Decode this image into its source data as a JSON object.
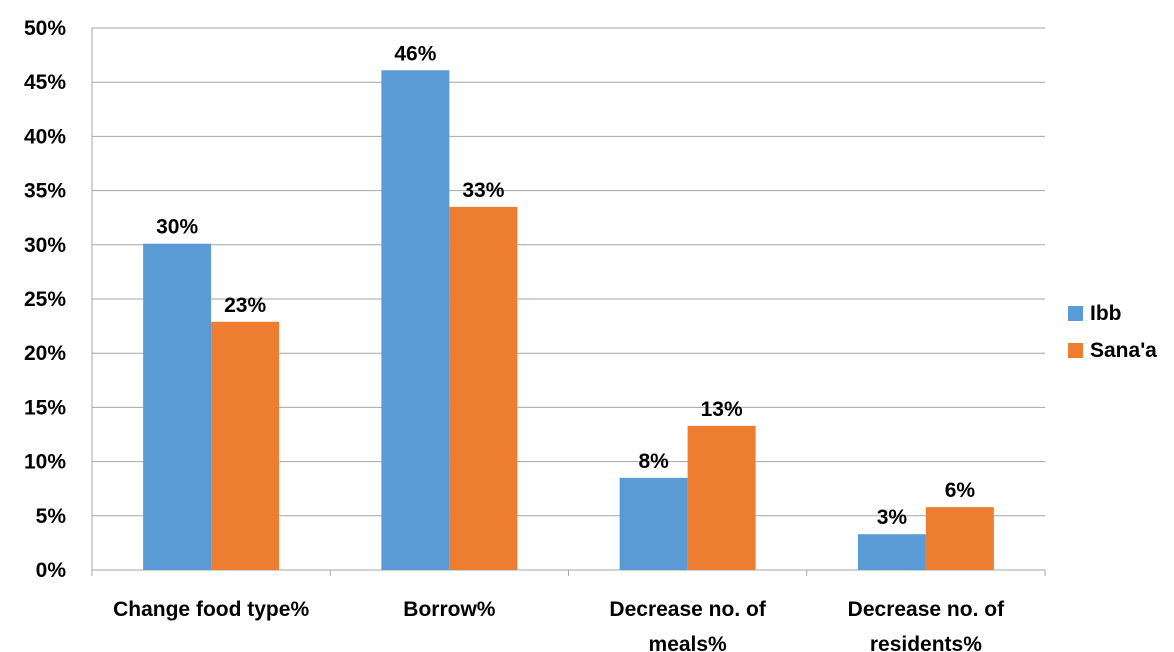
{
  "chart_data": {
    "type": "bar",
    "title": "",
    "xlabel": "",
    "ylabel": "",
    "categories": [
      [
        "Change food type%"
      ],
      [
        "Borrow%"
      ],
      [
        "Decrease no. of",
        "meals%"
      ],
      [
        "Decrease no. of",
        "residents%"
      ]
    ],
    "series": [
      {
        "name": "Ibb",
        "color": "#5b9bd5",
        "values": [
          30.1,
          46.1,
          8.5,
          3.3
        ],
        "labels": [
          "30%",
          "46%",
          "8%",
          "3%"
        ]
      },
      {
        "name": "Sana'a",
        "color": "#ed7d31",
        "values": [
          22.9,
          33.5,
          13.3,
          5.8
        ],
        "labels": [
          "23%",
          "33%",
          "13%",
          "6%"
        ]
      }
    ],
    "ylim": [
      0,
      50
    ],
    "yticks": [
      0,
      5,
      10,
      15,
      20,
      25,
      30,
      35,
      40,
      45,
      50
    ],
    "ytick_labels": [
      "0%",
      "5%",
      "10%",
      "15%",
      "20%",
      "25%",
      "30%",
      "35%",
      "40%",
      "45%",
      "50%"
    ],
    "grid": true,
    "gridline_color": "#a6a6a6",
    "legend_position": "right"
  }
}
